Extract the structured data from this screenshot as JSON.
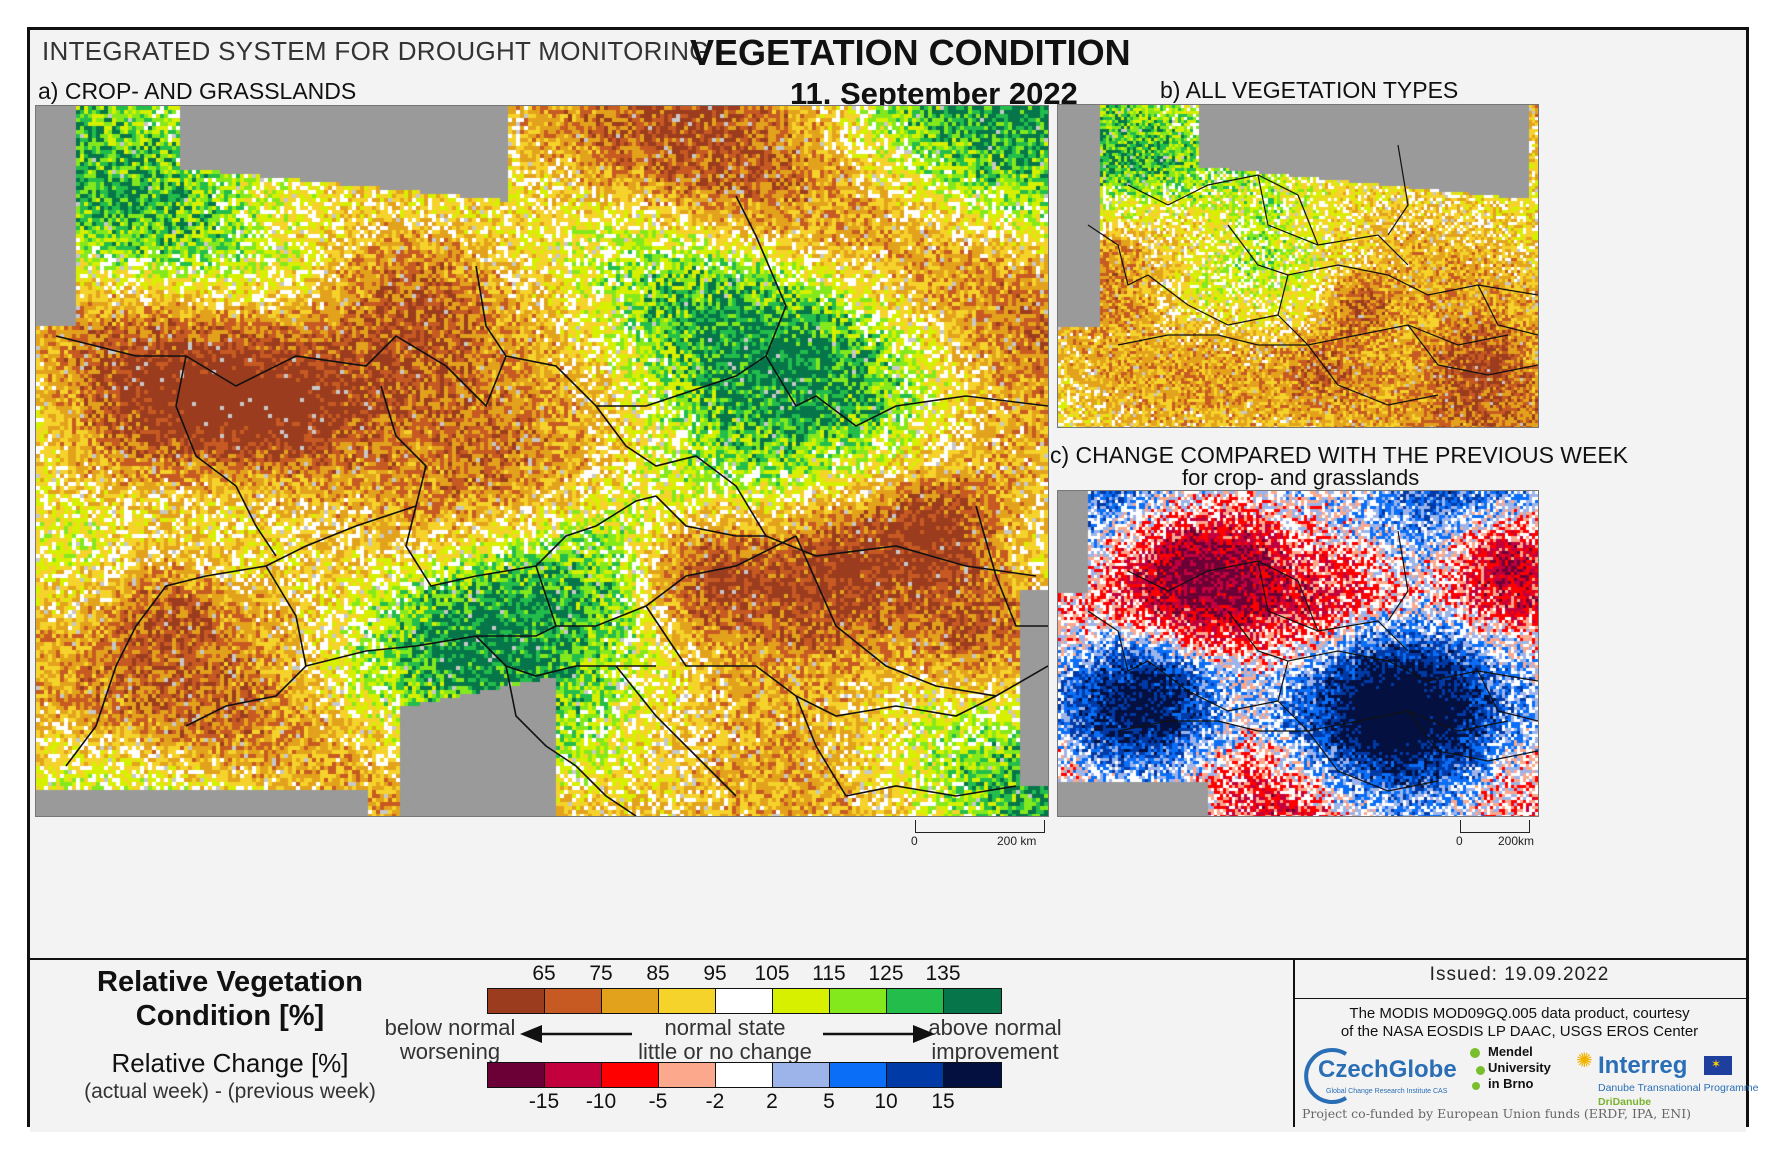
{
  "header": {
    "system_title": "INTEGRATED SYSTEM FOR DROUGHT MONITORING",
    "main_title": "VEGETATION CONDITION",
    "date": "11. September 2022"
  },
  "panels": {
    "a_title": "a) CROP- AND GRASSLANDS",
    "b_title": "b) ALL VEGETATION TYPES",
    "c_title": "c) CHANGE COMPARED WITH THE PREVIOUS WEEK",
    "c_subtitle": "for crop- and grasslands",
    "scale_a": {
      "zero": "0",
      "dist": "200 km"
    },
    "scale_c": {
      "zero": "0",
      "dist": "200km"
    }
  },
  "legend": {
    "rvc_title_line1": "Relative Vegetation",
    "rvc_title_line2": "Condition [%]",
    "change_title": "Relative Change [%]",
    "change_formula": "(actual week) - (previous week)",
    "rvc_ticks": [
      "65",
      "75",
      "85",
      "95",
      "105",
      "115",
      "125",
      "135"
    ],
    "rvc_colors": [
      "#9c3c1e",
      "#c75a22",
      "#e3a21c",
      "#f5d32a",
      "#ffffff",
      "#d7f000",
      "#84e91c",
      "#23bd4b",
      "#06764a"
    ],
    "change_ticks": [
      "-15",
      "-10",
      "-5",
      "-2",
      "2",
      "5",
      "10",
      "15"
    ],
    "change_colors": [
      "#6b0036",
      "#c2003d",
      "#ff0000",
      "#fba88c",
      "#ffffff",
      "#9db4ea",
      "#0a6ef7",
      "#003aa6",
      "#04103f"
    ],
    "left_label_1": "below normal",
    "left_label_2": "worsening",
    "mid_label_1": "normal state",
    "mid_label_2": "little or no change",
    "right_label_1": "above normal",
    "right_label_2": "improvement"
  },
  "info": {
    "issued": "Issued: 19.09.2022",
    "credit_line1": "The MODIS MOD09GQ.005 data product, courtesy",
    "credit_line2": "of the NASA EOSDIS LP DAAC, USGS EROS Center",
    "logo_czechglobe": "CzechGlobe",
    "logo_czechglobe_sub": "Global Change Research Institute CAS",
    "logo_mendel_1": "Mendel",
    "logo_mendel_2": "University",
    "logo_mendel_3": "in Brno",
    "logo_interreg": "Interreg",
    "logo_interreg_sub1": "Danube Transnational Programme",
    "logo_interreg_sub2": "DriDanube",
    "funding": "Project co-funded by European Union funds (ERDF, IPA, ENI)"
  }
}
